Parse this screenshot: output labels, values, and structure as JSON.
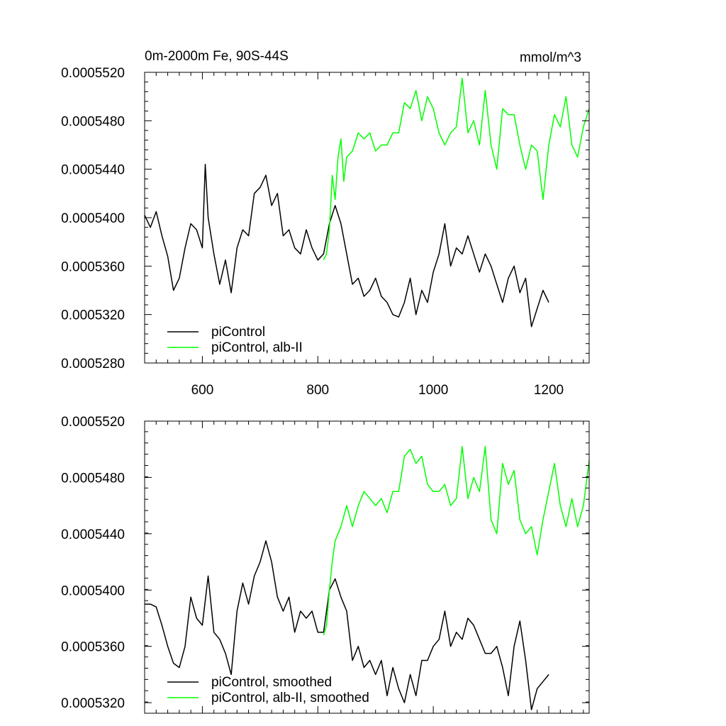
{
  "chart_data": [
    {
      "type": "line",
      "title_left": "0m-2000m Fe, 90S-44S",
      "title_right": "mmol/m^3",
      "xlim": [
        500,
        1270
      ],
      "ylim": [
        0.000528,
        0.000552
      ],
      "x_ticks": [
        600,
        800,
        1000,
        1200
      ],
      "x_tick_labels": [
        "600",
        "800",
        "1000",
        "1200"
      ],
      "y_ticks": [
        0.000528,
        0.000532,
        0.000536,
        0.00054,
        0.000544,
        0.000548,
        0.000552
      ],
      "y_tick_labels": [
        "0.0005280",
        "0.0005320",
        "0.0005360",
        "0.0005400",
        "0.0005440",
        "0.0005480",
        "0.0005520"
      ],
      "legend_position": "bottom-left",
      "series": [
        {
          "name": "piControl",
          "color": "#000000",
          "x": [
            500,
            510,
            520,
            530,
            540,
            550,
            560,
            570,
            580,
            590,
            600,
            605,
            610,
            620,
            630,
            640,
            650,
            660,
            670,
            680,
            690,
            700,
            710,
            720,
            730,
            740,
            750,
            760,
            770,
            780,
            790,
            800,
            810,
            820,
            830,
            840,
            850,
            860,
            870,
            880,
            890,
            900,
            910,
            920,
            930,
            940,
            950,
            960,
            970,
            980,
            990,
            1000,
            1010,
            1020,
            1030,
            1040,
            1050,
            1060,
            1070,
            1080,
            1090,
            1100,
            1110,
            1120,
            1130,
            1140,
            1150,
            1160,
            1170,
            1180,
            1190,
            1200
          ],
          "values": [
            0.0005402,
            0.0005392,
            0.0005405,
            0.0005385,
            0.0005368,
            0.000534,
            0.000535,
            0.0005375,
            0.0005395,
            0.000539,
            0.0005375,
            0.0005444,
            0.00054,
            0.000537,
            0.0005345,
            0.0005365,
            0.0005338,
            0.0005375,
            0.000539,
            0.0005385,
            0.000542,
            0.0005425,
            0.0005435,
            0.000541,
            0.000542,
            0.0005385,
            0.000539,
            0.0005375,
            0.000537,
            0.000539,
            0.0005375,
            0.0005365,
            0.000537,
            0.0005395,
            0.000541,
            0.0005395,
            0.000537,
            0.0005345,
            0.000535,
            0.0005335,
            0.000534,
            0.000535,
            0.0005335,
            0.000533,
            0.000532,
            0.0005318,
            0.000533,
            0.000535,
            0.000532,
            0.000534,
            0.000533,
            0.0005355,
            0.000537,
            0.0005395,
            0.000536,
            0.0005375,
            0.000537,
            0.0005385,
            0.000537,
            0.0005355,
            0.000537,
            0.000536,
            0.0005345,
            0.000533,
            0.000535,
            0.000536,
            0.0005338,
            0.000535,
            0.000531,
            0.0005325,
            0.000534,
            0.000533
          ]
        },
        {
          "name": "piControl, alb-II",
          "color": "#00ff00",
          "x": [
            810,
            815,
            820,
            825,
            830,
            835,
            840,
            845,
            850,
            860,
            870,
            880,
            890,
            900,
            910,
            920,
            930,
            940,
            950,
            960,
            970,
            980,
            990,
            1000,
            1010,
            1020,
            1030,
            1040,
            1050,
            1060,
            1070,
            1080,
            1090,
            1100,
            1110,
            1120,
            1130,
            1140,
            1150,
            1160,
            1170,
            1180,
            1190,
            1200,
            1210,
            1220,
            1230,
            1240,
            1250,
            1260,
            1270
          ],
          "values": [
            0.0005365,
            0.000537,
            0.000539,
            0.0005435,
            0.0005415,
            0.000545,
            0.0005465,
            0.000543,
            0.000545,
            0.0005455,
            0.000547,
            0.0005465,
            0.000547,
            0.0005455,
            0.000546,
            0.000546,
            0.000547,
            0.000547,
            0.0005495,
            0.000549,
            0.0005505,
            0.000548,
            0.00055,
            0.000549,
            0.000547,
            0.000546,
            0.000547,
            0.0005475,
            0.0005515,
            0.000547,
            0.000548,
            0.000546,
            0.0005505,
            0.000546,
            0.000544,
            0.000549,
            0.0005485,
            0.0005485,
            0.000546,
            0.000544,
            0.000546,
            0.0005455,
            0.0005415,
            0.000546,
            0.0005485,
            0.0005475,
            0.00055,
            0.000546,
            0.000545,
            0.0005475,
            0.000549
          ]
        }
      ]
    },
    {
      "type": "line",
      "xlim": [
        500,
        1270
      ],
      "ylim": [
        0.00053125,
        0.000552
      ],
      "x_ticks": [
        600,
        800,
        1000,
        1200
      ],
      "y_ticks": [
        0.000532,
        0.000536,
        0.00054,
        0.000544,
        0.000548,
        0.000552
      ],
      "y_tick_labels": [
        "0.0005320",
        "0.0005360",
        "0.0005400",
        "0.0005440",
        "0.0005480",
        "0.0005520"
      ],
      "legend_position": "bottom-left",
      "series": [
        {
          "name": "piControl, smoothed",
          "color": "#000000",
          "x": [
            500,
            510,
            520,
            530,
            540,
            550,
            560,
            570,
            580,
            590,
            600,
            610,
            620,
            630,
            640,
            650,
            660,
            670,
            680,
            690,
            700,
            710,
            720,
            730,
            740,
            750,
            760,
            770,
            780,
            790,
            800,
            810,
            820,
            830,
            840,
            850,
            860,
            870,
            880,
            890,
            900,
            910,
            920,
            930,
            940,
            950,
            960,
            970,
            980,
            990,
            1000,
            1010,
            1020,
            1030,
            1040,
            1050,
            1060,
            1070,
            1080,
            1090,
            1100,
            1110,
            1120,
            1130,
            1140,
            1150,
            1160,
            1170,
            1180,
            1190,
            1200
          ],
          "values": [
            0.000539,
            0.000539,
            0.0005388,
            0.0005375,
            0.000536,
            0.0005348,
            0.0005345,
            0.000536,
            0.0005395,
            0.000538,
            0.0005375,
            0.000541,
            0.000537,
            0.0005365,
            0.0005355,
            0.000534,
            0.0005385,
            0.0005405,
            0.000539,
            0.000541,
            0.000542,
            0.0005435,
            0.000542,
            0.0005395,
            0.0005385,
            0.0005395,
            0.000537,
            0.0005385,
            0.000538,
            0.0005385,
            0.000537,
            0.000537,
            0.00054,
            0.0005408,
            0.0005395,
            0.0005385,
            0.000535,
            0.000536,
            0.0005345,
            0.000535,
            0.000534,
            0.000535,
            0.0005325,
            0.0005345,
            0.000533,
            0.000532,
            0.000534,
            0.0005325,
            0.000535,
            0.000535,
            0.000536,
            0.0005365,
            0.0005385,
            0.000536,
            0.000537,
            0.0005365,
            0.000538,
            0.0005375,
            0.0005365,
            0.0005355,
            0.0005355,
            0.000536,
            0.0005345,
            0.0005325,
            0.000536,
            0.0005378,
            0.000535,
            0.0005315,
            0.000533,
            0.0005335,
            0.000534
          ]
        },
        {
          "name": "piControl, alb-II, smoothed",
          "color": "#00ff00",
          "x": [
            810,
            815,
            820,
            825,
            830,
            840,
            850,
            860,
            870,
            880,
            890,
            900,
            910,
            920,
            930,
            940,
            950,
            960,
            970,
            980,
            990,
            1000,
            1010,
            1020,
            1030,
            1040,
            1050,
            1060,
            1070,
            1080,
            1090,
            1100,
            1110,
            1120,
            1130,
            1140,
            1150,
            1160,
            1170,
            1180,
            1190,
            1200,
            1210,
            1220,
            1230,
            1240,
            1250,
            1260,
            1270
          ],
          "values": [
            0.0005368,
            0.0005375,
            0.00054,
            0.000542,
            0.0005435,
            0.0005445,
            0.000546,
            0.0005445,
            0.000546,
            0.000547,
            0.0005465,
            0.000546,
            0.0005465,
            0.0005455,
            0.000547,
            0.000547,
            0.0005495,
            0.00055,
            0.000549,
            0.0005495,
            0.0005475,
            0.000547,
            0.000547,
            0.0005475,
            0.000546,
            0.0005465,
            0.0005502,
            0.0005465,
            0.000548,
            0.000547,
            0.0005502,
            0.000545,
            0.000544,
            0.000549,
            0.0005475,
            0.0005485,
            0.000545,
            0.000544,
            0.0005445,
            0.0005425,
            0.000545,
            0.000547,
            0.000549,
            0.000546,
            0.0005445,
            0.0005465,
            0.0005445,
            0.000546,
            0.0005492
          ]
        }
      ]
    }
  ]
}
